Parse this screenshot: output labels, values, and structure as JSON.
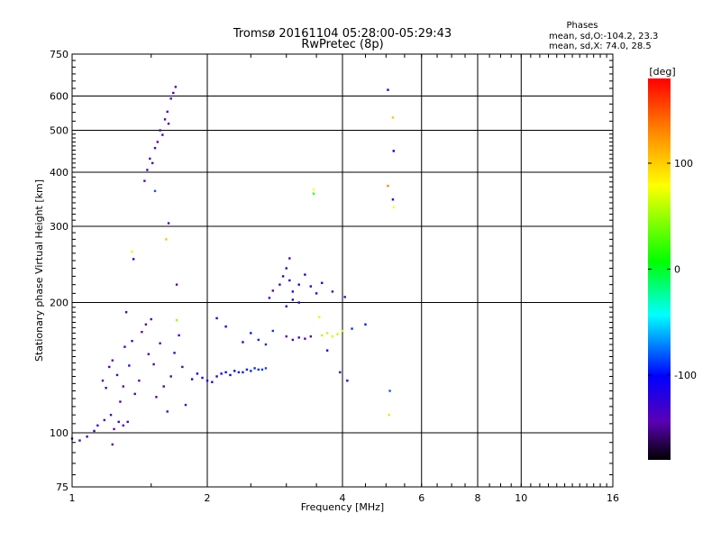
{
  "chart_data": {
    "type": "scatter",
    "title": "Tromsø 20161104 05:28:00-05:29:43",
    "subtitle": "RwPretec (8p)",
    "xlabel": "Frequency [MHz]",
    "ylabel": "Stationary phase Virtual Height [km]",
    "x_scale": "log",
    "y_scale": "log",
    "xlim": [
      1,
      16
    ],
    "ylim": [
      75,
      750
    ],
    "x_ticks": [
      1,
      2,
      4,
      6,
      8,
      10,
      16
    ],
    "x_tick_labels": [
      "1",
      "2",
      "4",
      "6",
      "8",
      "10",
      "16"
    ],
    "y_ticks": [
      75,
      100,
      200,
      300,
      400,
      500,
      600,
      750
    ],
    "y_tick_labels": [
      "75",
      "100",
      "200",
      "300",
      "400",
      "500",
      "600",
      "750"
    ],
    "grid": true,
    "phases_header": "Phases",
    "phases_line1": "mean, sd,O:-104.2, 23.3",
    "phases_line2": "mean, sd,X: 74.0, 28.5",
    "colorbar": {
      "label": "[deg]",
      "range": [
        -180,
        180
      ],
      "ticks": [
        100,
        0,
        -100
      ],
      "tick_labels": [
        "100",
        "0",
        "-100"
      ],
      "colors": [
        "#ff0000",
        "#ff8800",
        "#ffff00",
        "#00ff00",
        "#00ffff",
        "#0000ff",
        "#5a00b4",
        "#000000"
      ]
    },
    "series": [
      {
        "points": [
          [
            1.0,
            97,
            -130
          ],
          [
            1.04,
            96,
            -130
          ],
          [
            1.08,
            98,
            -125
          ],
          [
            1.12,
            101,
            -120
          ],
          [
            1.14,
            104,
            -125
          ],
          [
            1.18,
            107,
            -135
          ],
          [
            1.22,
            110,
            -130
          ],
          [
            1.24,
            102,
            -140
          ],
          [
            1.27,
            106,
            -130
          ],
          [
            1.3,
            104,
            -135
          ],
          [
            1.33,
            106,
            -130
          ],
          [
            1.17,
            132,
            -135
          ],
          [
            1.19,
            127,
            -130
          ],
          [
            1.21,
            142,
            -135
          ],
          [
            1.23,
            147,
            -140
          ],
          [
            1.26,
            136,
            -135
          ],
          [
            1.28,
            118,
            -130
          ],
          [
            1.3,
            128,
            -140
          ],
          [
            1.31,
            158,
            -130
          ],
          [
            1.32,
            190,
            -135
          ],
          [
            1.34,
            143,
            -125
          ],
          [
            1.36,
            163,
            -130
          ],
          [
            1.38,
            123,
            -130
          ],
          [
            1.41,
            132,
            -135
          ],
          [
            1.43,
            171,
            -140
          ],
          [
            1.46,
            178,
            -145
          ],
          [
            1.48,
            152,
            -130
          ],
          [
            1.5,
            183,
            -135
          ],
          [
            1.52,
            144,
            -130
          ],
          [
            1.54,
            121,
            -135
          ],
          [
            1.57,
            161,
            -140
          ],
          [
            1.6,
            128,
            -130
          ],
          [
            1.63,
            112,
            -135
          ],
          [
            1.66,
            135,
            -130
          ],
          [
            1.69,
            153,
            -125
          ],
          [
            1.71,
            220,
            -140
          ],
          [
            1.73,
            168,
            -130
          ],
          [
            1.76,
            142,
            -135
          ],
          [
            1.79,
            116,
            -130
          ]
        ]
      },
      {
        "points": [
          [
            1.45,
            382,
            -140
          ],
          [
            1.47,
            405,
            -135
          ],
          [
            1.49,
            430,
            -145
          ],
          [
            1.51,
            420,
            -130
          ],
          [
            1.53,
            455,
            -135
          ],
          [
            1.55,
            470,
            -140
          ],
          [
            1.57,
            500,
            -130
          ],
          [
            1.59,
            488,
            -135
          ],
          [
            1.61,
            530,
            -140
          ],
          [
            1.63,
            552,
            -130
          ],
          [
            1.64,
            518,
            -145
          ],
          [
            1.66,
            592,
            -135
          ],
          [
            1.68,
            610,
            -130
          ],
          [
            1.7,
            630,
            -140
          ]
        ]
      },
      {
        "points": [
          [
            1.85,
            133,
            -110
          ],
          [
            1.9,
            137,
            -108
          ],
          [
            1.95,
            134,
            -110
          ],
          [
            2.0,
            132,
            -112
          ],
          [
            2.05,
            131,
            -110
          ],
          [
            2.1,
            135,
            -108
          ],
          [
            2.15,
            137,
            -105
          ],
          [
            2.2,
            138,
            -100
          ],
          [
            2.25,
            136,
            -100
          ],
          [
            2.3,
            139,
            -98
          ],
          [
            2.35,
            138,
            -96
          ],
          [
            2.4,
            138,
            -95
          ],
          [
            2.45,
            140,
            -95
          ],
          [
            2.5,
            139,
            -92
          ],
          [
            2.55,
            141,
            -90
          ],
          [
            2.6,
            140,
            -90
          ],
          [
            2.65,
            140,
            -88
          ],
          [
            2.7,
            141,
            -85
          ],
          [
            2.2,
            176,
            -100
          ],
          [
            2.4,
            162,
            -98
          ],
          [
            2.5,
            170,
            -95
          ],
          [
            2.6,
            164,
            -92
          ],
          [
            2.7,
            160,
            -90
          ],
          [
            2.8,
            172,
            -88
          ],
          [
            2.1,
            184,
            -100
          ]
        ]
      },
      {
        "points": [
          [
            2.75,
            205,
            -130
          ],
          [
            2.8,
            213,
            -135
          ],
          [
            2.9,
            220,
            -125
          ],
          [
            2.95,
            230,
            -120
          ],
          [
            3.0,
            240,
            -115
          ],
          [
            3.05,
            225,
            -118
          ],
          [
            3.1,
            212,
            -120
          ],
          [
            3.2,
            220,
            -115
          ],
          [
            3.3,
            232,
            -110
          ],
          [
            3.4,
            218,
            -112
          ],
          [
            3.5,
            210,
            -108
          ],
          [
            3.6,
            222,
            -110
          ],
          [
            3.0,
            196,
            -120
          ],
          [
            3.1,
            203,
            -125
          ],
          [
            3.2,
            200,
            -115
          ],
          [
            3.8,
            212,
            -120
          ],
          [
            4.05,
            206,
            -125
          ],
          [
            3.05,
            253,
            -130
          ]
        ]
      },
      {
        "points": [
          [
            3.0,
            167,
            -140
          ],
          [
            3.1,
            164,
            -135
          ],
          [
            3.2,
            166,
            -130
          ],
          [
            3.3,
            165,
            -135
          ],
          [
            3.4,
            167,
            -130
          ],
          [
            3.6,
            168,
            70
          ],
          [
            3.7,
            170,
            75
          ],
          [
            3.8,
            167,
            80
          ],
          [
            3.9,
            169,
            78
          ],
          [
            4.0,
            172,
            72
          ],
          [
            4.2,
            174,
            -90
          ],
          [
            4.5,
            178,
            -95
          ]
        ]
      },
      {
        "points": [
          [
            5.05,
            620,
            -110
          ],
          [
            5.18,
            535,
            120
          ],
          [
            5.2,
            448,
            -100
          ],
          [
            5.05,
            372,
            140
          ],
          [
            5.18,
            346,
            -120
          ],
          [
            5.2,
            332,
            100
          ],
          [
            5.1,
            125,
            -80
          ],
          [
            5.08,
            110,
            110
          ],
          [
            3.45,
            365,
            100
          ],
          [
            3.45,
            357,
            20
          ],
          [
            3.55,
            185,
            90
          ],
          [
            3.7,
            155,
            -100
          ],
          [
            3.95,
            138,
            -120
          ],
          [
            4.1,
            132,
            -110
          ],
          [
            1.36,
            262,
            90
          ],
          [
            1.37,
            252,
            -110
          ],
          [
            1.62,
            280,
            120
          ],
          [
            1.64,
            305,
            -130
          ],
          [
            1.53,
            362,
            -80
          ],
          [
            1.71,
            182,
            60
          ],
          [
            1.23,
            94,
            -140
          ]
        ]
      }
    ]
  }
}
